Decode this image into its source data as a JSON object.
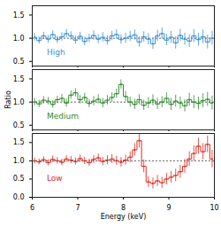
{
  "chart_data": [
    {
      "type": "line",
      "tick_labels": "y",
      "x": [
        6.05,
        6.15,
        6.25,
        6.35,
        6.45,
        6.55,
        6.65,
        6.75,
        6.85,
        6.95,
        7.05,
        7.15,
        7.25,
        7.35,
        7.45,
        7.55,
        7.65,
        7.75,
        7.85,
        7.95,
        8.05,
        8.15,
        8.25,
        8.35,
        8.45,
        8.55,
        8.65,
        8.75,
        8.85,
        8.95,
        9.05,
        9.15,
        9.25,
        9.35,
        9.45,
        9.55,
        9.65,
        9.75,
        9.85,
        9.95
      ],
      "xlim": [
        6,
        10
      ],
      "xticks": [
        6,
        7,
        8,
        9,
        10
      ],
      "ylim": [
        0.4,
        1.7
      ],
      "yticks": [
        0.5,
        {
          "value": 1,
          "label": "1.0"
        },
        1.5
      ],
      "baseline": 1,
      "series": [
        {
          "name": "High",
          "color": "#3b8fd6",
          "line_style": "steps",
          "values": [
            1.02,
            0.95,
            1.05,
            0.98,
            1.08,
            0.97,
            1.03,
            1.1,
            1.05,
            0.96,
            1.04,
            0.93,
            1.0,
            1.06,
            0.98,
            1.02,
            0.95,
            1.05,
            1.08,
            0.97,
            1.0,
            1.04,
            1.07,
            0.92,
            1.03,
            0.98,
            0.88,
            1.05,
            1.1,
            0.96,
            1.02,
            0.9,
            1.06,
            0.98,
            0.94,
            1.05,
            0.97,
            1.03,
            0.92,
            1.0
          ],
          "errors": [
            0.08,
            0.08,
            0.08,
            0.08,
            0.08,
            0.08,
            0.09,
            0.09,
            0.09,
            0.09,
            0.09,
            0.09,
            0.09,
            0.1,
            0.1,
            0.1,
            0.1,
            0.1,
            0.1,
            0.1,
            0.11,
            0.11,
            0.11,
            0.11,
            0.11,
            0.12,
            0.12,
            0.12,
            0.12,
            0.12,
            0.13,
            0.13,
            0.13,
            0.13,
            0.14,
            0.14,
            0.14,
            0.15,
            0.15,
            0.15
          ]
        }
      ]
    },
    {
      "type": "line",
      "tick_labels": "y",
      "ylabel": "Ratio",
      "x": [
        6.05,
        6.15,
        6.25,
        6.35,
        6.45,
        6.55,
        6.65,
        6.75,
        6.85,
        6.95,
        7.05,
        7.15,
        7.25,
        7.35,
        7.45,
        7.55,
        7.65,
        7.75,
        7.85,
        7.95,
        8.05,
        8.15,
        8.25,
        8.35,
        8.45,
        8.55,
        8.65,
        8.75,
        8.85,
        8.95,
        9.05,
        9.15,
        9.25,
        9.35,
        9.45,
        9.55,
        9.65,
        9.75,
        9.85,
        9.95
      ],
      "xlim": [
        6,
        10
      ],
      "xticks": [
        6,
        7,
        8,
        9,
        10
      ],
      "ylim": [
        0.4,
        1.7
      ],
      "yticks": [
        0.5,
        {
          "value": 1,
          "label": "1.0"
        },
        1.5
      ],
      "baseline": 1,
      "series": [
        {
          "name": "Medium",
          "color": "#2e8b2e",
          "line_style": "steps",
          "values": [
            1.0,
            0.96,
            1.04,
            1.02,
            0.95,
            1.05,
            1.08,
            0.98,
            1.15,
            1.2,
            1.05,
            1.1,
            0.97,
            1.02,
            1.06,
            0.98,
            1.04,
            1.1,
            1.18,
            1.38,
            1.12,
            1.0,
            0.95,
            1.05,
            0.93,
            0.98,
            1.04,
            0.96,
            1.0,
            1.08,
            0.95,
            1.02,
            0.98,
            0.92,
            1.05,
            1.0,
            0.97,
            1.03,
            1.06,
            0.98
          ],
          "errors": [
            0.08,
            0.08,
            0.08,
            0.08,
            0.08,
            0.08,
            0.09,
            0.09,
            0.09,
            0.09,
            0.09,
            0.09,
            0.09,
            0.1,
            0.1,
            0.1,
            0.1,
            0.1,
            0.1,
            0.1,
            0.11,
            0.11,
            0.11,
            0.11,
            0.11,
            0.12,
            0.12,
            0.12,
            0.12,
            0.12,
            0.13,
            0.13,
            0.13,
            0.13,
            0.14,
            0.14,
            0.14,
            0.15,
            0.15,
            0.15
          ]
        }
      ]
    },
    {
      "type": "line",
      "xlabel": "Energy (keV)",
      "x": [
        6.05,
        6.15,
        6.25,
        6.35,
        6.45,
        6.55,
        6.65,
        6.75,
        6.85,
        6.95,
        7.05,
        7.15,
        7.25,
        7.35,
        7.45,
        7.55,
        7.65,
        7.75,
        7.85,
        7.95,
        8.05,
        8.15,
        8.25,
        8.35,
        8.45,
        8.55,
        8.65,
        8.75,
        8.85,
        8.95,
        9.05,
        9.15,
        9.25,
        9.35,
        9.45,
        9.55,
        9.65,
        9.75,
        9.85,
        9.95
      ],
      "xlim": [
        6,
        10
      ],
      "xticks": [
        6,
        7,
        8,
        9,
        10
      ],
      "ylim": [
        0,
        1.75
      ],
      "yticks": [
        {
          "value": 0,
          "label": "0.0"
        },
        0.5,
        {
          "value": 1,
          "label": "1.0"
        },
        1.5
      ],
      "baseline": 1,
      "series": [
        {
          "name": "Low",
          "color": "#e0281e",
          "line_style": "steps",
          "values": [
            1.0,
            0.97,
            1.03,
            0.95,
            1.04,
            1.0,
            0.96,
            1.05,
            1.02,
            0.98,
            1.06,
            1.0,
            0.95,
            1.04,
            1.08,
            0.98,
            1.02,
            1.05,
            1.0,
            0.96,
            1.02,
            1.1,
            1.3,
            1.55,
            0.85,
            0.42,
            0.38,
            0.45,
            0.4,
            0.5,
            0.55,
            0.6,
            0.7,
            0.85,
            1.05,
            1.2,
            1.4,
            1.25,
            1.45,
            1.05
          ],
          "errors": [
            0.08,
            0.08,
            0.08,
            0.08,
            0.09,
            0.09,
            0.09,
            0.09,
            0.1,
            0.1,
            0.1,
            0.1,
            0.1,
            0.11,
            0.11,
            0.11,
            0.12,
            0.12,
            0.12,
            0.13,
            0.14,
            0.15,
            0.17,
            0.2,
            0.18,
            0.15,
            0.15,
            0.15,
            0.15,
            0.16,
            0.16,
            0.17,
            0.18,
            0.19,
            0.2,
            0.21,
            0.22,
            0.22,
            0.23,
            0.24
          ]
        }
      ]
    }
  ]
}
